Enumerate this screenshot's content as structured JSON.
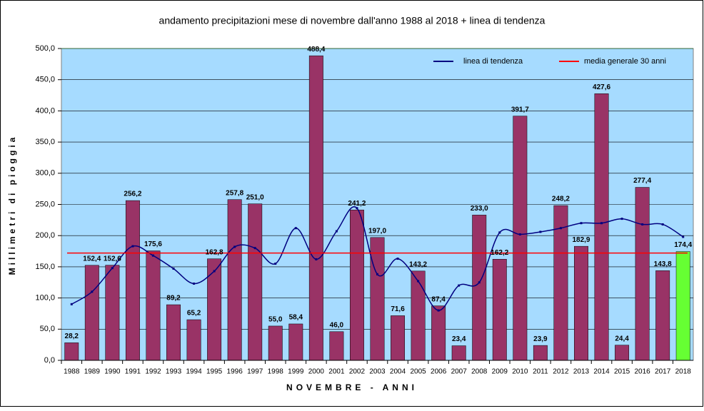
{
  "chart_data": {
    "type": "bar",
    "title": "andamento precipitazioni mese di novembre dall'anno 1988 al 2018 + linea di tendenza",
    "x_label": "NOVEMBRE - ANNI",
    "y_label": "Millimetri di pioggia",
    "categories": [
      "1988",
      "1989",
      "1990",
      "1991",
      "1992",
      "1993",
      "1994",
      "1995",
      "1996",
      "1997",
      "1998",
      "1999",
      "2000",
      "2001",
      "2002",
      "2003",
      "2004",
      "2005",
      "2006",
      "2007",
      "2008",
      "2009",
      "2010",
      "2011",
      "2012",
      "2013",
      "2014",
      "2015",
      "2016",
      "2017",
      "2018"
    ],
    "values": [
      28.2,
      152.4,
      152.6,
      256.2,
      175.6,
      89.2,
      65.2,
      162.8,
      257.8,
      251.0,
      55.0,
      58.4,
      488.4,
      46.0,
      241.2,
      197.0,
      71.6,
      143.2,
      87.4,
      23.4,
      233.0,
      162.2,
      391.7,
      23.9,
      248.2,
      182.9,
      427.6,
      24.4,
      277.4,
      143.8,
      174.4
    ],
    "value_labels": [
      "28,2",
      "152,4",
      "152,6",
      "256,2",
      "175,6",
      "89,2",
      "65,2",
      "162,8",
      "257,8",
      "251,0",
      "55,0",
      "58,4",
      "488,4",
      "46,0",
      "241,2",
      "197,0",
      "71,6",
      "143,2",
      "87,4",
      "23,4",
      "233,0",
      "162,2",
      "391,7",
      "23,9",
      "248,2",
      "182,9",
      "427,6",
      "24,4",
      "277,4",
      "143,8",
      "174,4"
    ],
    "colors": [
      "#993366",
      "#993366",
      "#993366",
      "#993366",
      "#993366",
      "#993366",
      "#993366",
      "#993366",
      "#993366",
      "#993366",
      "#993366",
      "#993366",
      "#993366",
      "#993366",
      "#993366",
      "#993366",
      "#993366",
      "#993366",
      "#993366",
      "#993366",
      "#993366",
      "#993366",
      "#993366",
      "#993366",
      "#993366",
      "#993366",
      "#993366",
      "#993366",
      "#993366",
      "#993366",
      "#66ff33"
    ],
    "series": [
      {
        "name": "linea di tendenza",
        "color": "#000080",
        "type": "line",
        "values": [
          90,
          110,
          148,
          183,
          168,
          147,
          123,
          143,
          182,
          180,
          155,
          212,
          162,
          207,
          244,
          138,
          163,
          127,
          80,
          120,
          125,
          205,
          202,
          206,
          212,
          220,
          220,
          227,
          218,
          218,
          198
        ]
      },
      {
        "name": "media generale 30 anni",
        "color": "#ff0000",
        "type": "hline",
        "value": 172
      }
    ],
    "ylim": [
      0,
      500
    ],
    "yticks": [
      {
        "value": 0,
        "label": "0,0"
      },
      {
        "value": 50,
        "label": "50,0"
      },
      {
        "value": 100,
        "label": "100,0"
      },
      {
        "value": 150,
        "label": "150,0"
      },
      {
        "value": 200,
        "label": "200,0"
      },
      {
        "value": 250,
        "label": "250,0"
      },
      {
        "value": 300,
        "label": "300,0"
      },
      {
        "value": 350,
        "label": "350,0"
      },
      {
        "value": 400,
        "label": "400,0"
      },
      {
        "value": 450,
        "label": "450,0"
      },
      {
        "value": 500,
        "label": "500,0"
      }
    ],
    "grid": true,
    "legend": "top-right"
  }
}
